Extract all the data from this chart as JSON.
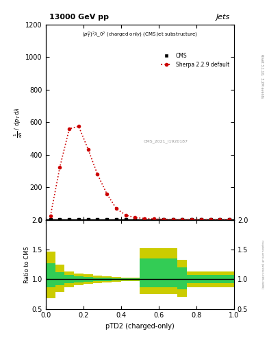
{
  "title_top": "13000 GeV pp",
  "title_right": "Jets",
  "xlabel": "pTD2 (charged-only)",
  "ylabel_ratio": "Ratio to CMS",
  "right_label_main": "Rivet 3.1.10,  3.2M events",
  "right_label_sub": "mcplots.cern.ch [arXiv:1306.3436]",
  "watermark": "CMS_2021_I1920187",
  "cms_label": "CMS",
  "sherpa_label": "Sherpa 2.2.9 default",
  "cms_bin_edges": [
    0.0,
    0.05,
    0.1,
    0.15,
    0.2,
    0.25,
    0.3,
    0.35,
    0.4,
    0.45,
    0.5,
    0.55,
    0.6,
    0.65,
    0.7,
    0.75,
    0.8,
    0.85,
    0.9,
    0.95,
    1.0
  ],
  "cms_y": [
    3,
    3,
    3,
    3,
    3,
    3,
    3,
    3,
    3,
    3,
    3,
    3,
    3,
    3,
    3,
    3,
    3,
    3,
    3,
    3
  ],
  "sherpa_x": [
    0.025,
    0.075,
    0.125,
    0.175,
    0.225,
    0.275,
    0.325,
    0.375,
    0.425,
    0.475,
    0.525,
    0.575,
    0.625,
    0.675,
    0.725,
    0.775,
    0.825,
    0.875,
    0.925,
    0.975
  ],
  "sherpa_y": [
    25,
    325,
    560,
    575,
    435,
    280,
    160,
    70,
    30,
    15,
    10,
    7,
    5,
    4,
    3,
    3,
    3,
    2,
    2,
    2
  ],
  "ylim_main": [
    0,
    1200
  ],
  "xlim": [
    0,
    1
  ],
  "ylim_ratio": [
    0.5,
    2.0
  ],
  "ratio_green_lo": [
    0.86,
    0.9,
    0.93,
    0.95,
    0.96,
    0.97,
    0.97,
    0.98,
    0.98,
    0.98,
    0.87,
    0.87,
    0.87,
    0.87,
    0.83,
    0.93,
    0.93,
    0.93,
    0.93,
    0.93
  ],
  "ratio_green_hi": [
    1.27,
    1.12,
    1.07,
    1.05,
    1.04,
    1.03,
    1.03,
    1.02,
    1.02,
    1.02,
    1.35,
    1.35,
    1.35,
    1.35,
    1.2,
    1.07,
    1.07,
    1.07,
    1.07,
    1.07
  ],
  "ratio_yellow_lo": [
    0.68,
    0.78,
    0.87,
    0.9,
    0.92,
    0.94,
    0.95,
    0.96,
    0.97,
    0.97,
    0.75,
    0.75,
    0.75,
    0.75,
    0.7,
    0.87,
    0.87,
    0.87,
    0.87,
    0.87
  ],
  "ratio_yellow_hi": [
    1.47,
    1.25,
    1.13,
    1.1,
    1.08,
    1.06,
    1.05,
    1.04,
    1.03,
    1.03,
    1.53,
    1.53,
    1.53,
    1.53,
    1.33,
    1.13,
    1.13,
    1.13,
    1.13,
    1.13
  ],
  "cms_color": "#000000",
  "sherpa_color": "#cc0000",
  "green_color": "#33cc55",
  "yellow_color": "#cccc00",
  "yticks_main": [
    0,
    200,
    400,
    600,
    800,
    1000,
    1200
  ],
  "yticks_ratio": [
    0.5,
    1.0,
    1.5,
    2.0
  ],
  "xticks": [
    0.0,
    0.5,
    1.0
  ]
}
